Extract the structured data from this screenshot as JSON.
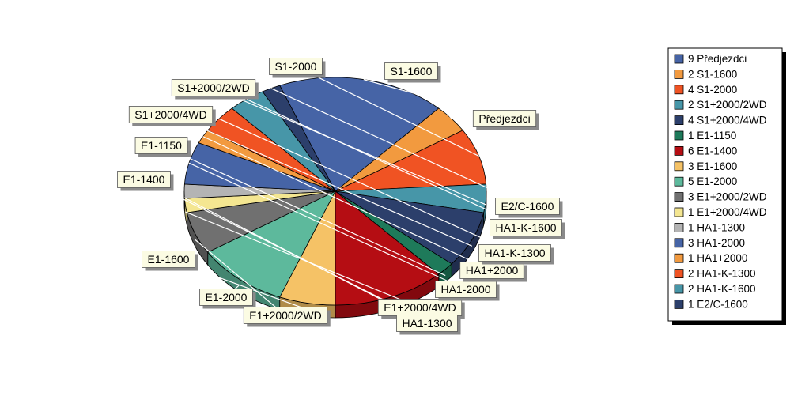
{
  "chart_data": {
    "type": "pie",
    "title": "",
    "slices": [
      {
        "label": "Předjezdci",
        "value": 9,
        "color": "#4664a6",
        "legend": "9 Předjezdci"
      },
      {
        "label": "S1-1600",
        "value": 2,
        "color": "#f29a3f",
        "legend": "2 S1-1600"
      },
      {
        "label": "S1-2000",
        "value": 4,
        "color": "#f05323",
        "legend": "4 S1-2000"
      },
      {
        "label": "S1+2000/2WD",
        "value": 2,
        "color": "#4796a8",
        "legend": "2 S1+2000/2WD"
      },
      {
        "label": "S1+2000/4WD",
        "value": 4,
        "color": "#2c3f6b",
        "legend": "4 S1+2000/4WD"
      },
      {
        "label": "E1-1150",
        "value": 1,
        "color": "#1e7a5a",
        "legend": "1 E1-1150"
      },
      {
        "label": "E1-1400",
        "value": 6,
        "color": "#b50d13",
        "legend": "6 E1-1400"
      },
      {
        "label": "E1-1600",
        "value": 3,
        "color": "#f5c266",
        "legend": "3 E1-1600"
      },
      {
        "label": "E1-2000",
        "value": 5,
        "color": "#5db99c",
        "legend": "5 E1-2000"
      },
      {
        "label": "E1+2000/2WD",
        "value": 3,
        "color": "#707070",
        "legend": "3 E1+2000/2WD"
      },
      {
        "label": "E1+2000/4WD",
        "value": 1,
        "color": "#f4e691",
        "legend": "1 E1+2000/4WD"
      },
      {
        "label": "HA1-1300",
        "value": 1,
        "color": "#b4b4b4",
        "legend": "1 HA1-1300"
      },
      {
        "label": "HA1-2000",
        "value": 3,
        "color": "#4664a6",
        "legend": "3 HA1-2000"
      },
      {
        "label": "HA1+2000",
        "value": 1,
        "color": "#f29a3f",
        "legend": "1 HA1+2000"
      },
      {
        "label": "HA1-K-1300",
        "value": 2,
        "color": "#f05323",
        "legend": "2 HA1-K-1300"
      },
      {
        "label": "HA1-K-1600",
        "value": 2,
        "color": "#4796a8",
        "legend": "2 HA1-K-1600"
      },
      {
        "label": "E2/C-1600",
        "value": 1,
        "color": "#2c3f6b",
        "legend": "1 E2/C-1600"
      }
    ],
    "legend_position": "right"
  }
}
